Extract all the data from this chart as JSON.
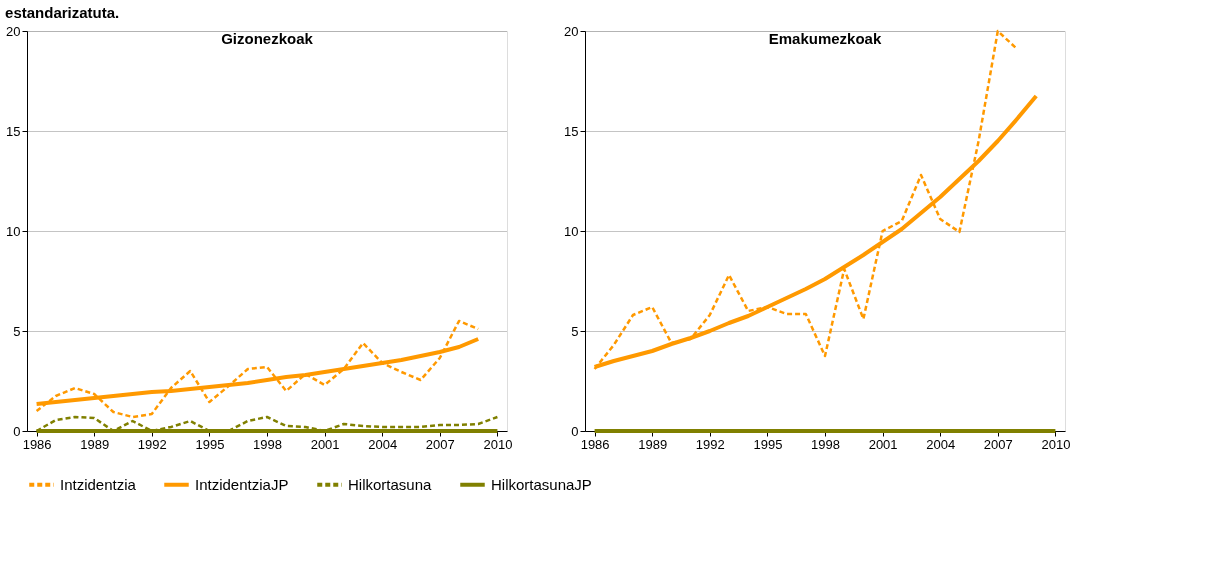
{
  "chart_data": [
    {
      "type": "line",
      "title": "Gizonezkoak",
      "annotations": [
        "estandarizatuta."
      ],
      "legend": "bottom",
      "grid": "y",
      "xlim": [
        1985.5,
        2010.5
      ],
      "xticks": [
        1986,
        1989,
        1992,
        1995,
        1998,
        2001,
        2004,
        2007,
        2010
      ],
      "ylim": [
        0,
        20
      ],
      "yticks": [
        0,
        5,
        10,
        15,
        20
      ],
      "series": [
        {
          "name": "Intzidentzia",
          "color": "#ff9900",
          "line_style": "dashed",
          "x": [
            1986,
            1987,
            1988,
            1989,
            1990,
            1991,
            1992,
            1993,
            1994,
            1995,
            1996,
            1997,
            1998,
            1999,
            2000,
            2001,
            2002,
            2003,
            2004,
            2005,
            2006,
            2007,
            2008,
            2009
          ],
          "values": [
            1.0,
            1.75,
            2.15,
            1.85,
            0.95,
            0.7,
            0.85,
            2.15,
            3.0,
            1.45,
            2.25,
            3.1,
            3.2,
            2.0,
            2.85,
            2.3,
            3.1,
            4.4,
            3.4,
            2.95,
            2.55,
            3.65,
            5.5,
            5.1
          ]
        },
        {
          "name": "IntzidentziaJP",
          "color": "#ff9900",
          "line_style": "solid",
          "x": [
            1986,
            1987,
            1988,
            1989,
            1990,
            1991,
            1992,
            1993,
            1994,
            1995,
            1996,
            1997,
            1998,
            1999,
            2000,
            2001,
            2002,
            2003,
            2004,
            2005,
            2006,
            2007,
            2008,
            2009
          ],
          "values": [
            1.35,
            1.45,
            1.55,
            1.65,
            1.75,
            1.85,
            1.95,
            2.0,
            2.1,
            2.2,
            2.3,
            2.4,
            2.55,
            2.7,
            2.8,
            2.95,
            3.1,
            3.25,
            3.4,
            3.55,
            3.75,
            3.95,
            4.2,
            4.6
          ]
        },
        {
          "name": "Hilkortasuna",
          "color": "#808000",
          "line_style": "dashed",
          "x": [
            1986,
            1987,
            1988,
            1989,
            1990,
            1991,
            1992,
            1993,
            1994,
            1995,
            1996,
            1997,
            1998,
            1999,
            2000,
            2001,
            2002,
            2003,
            2004,
            2005,
            2006,
            2007,
            2008,
            2009,
            2010
          ],
          "values": [
            0,
            0.55,
            0.7,
            0.65,
            0,
            0.5,
            0,
            0.2,
            0.5,
            0,
            0,
            0.5,
            0.7,
            0.25,
            0.2,
            0,
            0.35,
            0.25,
            0.2,
            0.2,
            0.2,
            0.3,
            0.3,
            0.35,
            0.7
          ]
        },
        {
          "name": "HilkortasunaJP",
          "color": "#808000",
          "line_style": "solid",
          "x": [
            1986,
            1987,
            1988,
            1989,
            1990,
            1991,
            1992,
            1993,
            1994,
            1995,
            1996,
            1997,
            1998,
            1999,
            2000,
            2001,
            2002,
            2003,
            2004,
            2005,
            2006,
            2007,
            2008,
            2009,
            2010
          ],
          "values": [
            0,
            0,
            0,
            0,
            0,
            0,
            0,
            0,
            0,
            0,
            0,
            0,
            0,
            0,
            0,
            0,
            0,
            0,
            0,
            0,
            0,
            0,
            0,
            0,
            0
          ]
        }
      ]
    },
    {
      "type": "line",
      "title": "Emakumezkoak",
      "legend": "bottom",
      "grid": "y",
      "xlim": [
        1985.5,
        2010.5
      ],
      "xticks": [
        1986,
        1989,
        1992,
        1995,
        1998,
        2001,
        2004,
        2007,
        2010
      ],
      "ylim": [
        0,
        20
      ],
      "yticks": [
        0,
        5,
        10,
        15,
        20
      ],
      "series": [
        {
          "name": "Intzidentzia",
          "color": "#ff9900",
          "line_style": "dashed",
          "x": [
            1986,
            1987,
            1988,
            1989,
            1990,
            1991,
            1992,
            1993,
            1994,
            1995,
            1996,
            1997,
            1998,
            1999,
            2000,
            2001,
            2002,
            2003,
            2004,
            2005,
            2006,
            2007,
            2008
          ],
          "values": [
            3.1,
            4.3,
            5.8,
            6.2,
            4.4,
            4.6,
            5.8,
            7.8,
            6.0,
            6.2,
            5.85,
            5.85,
            3.75,
            8.1,
            5.6,
            10.0,
            10.5,
            12.8,
            10.6,
            9.95,
            14.5,
            20.0,
            19.1
          ]
        },
        {
          "name": "IntzidentziaJP",
          "color": "#ff9900",
          "line_style": "solid",
          "x": [
            1986,
            1987,
            1988,
            1989,
            1990,
            1991,
            1992,
            1993,
            1994,
            1995,
            1996,
            1997,
            1998,
            1999,
            2000,
            2001,
            2002,
            2003,
            2004,
            2005,
            2006,
            2007,
            2008,
            2009
          ],
          "values": [
            3.2,
            3.5,
            3.75,
            4.0,
            4.35,
            4.65,
            5.0,
            5.4,
            5.75,
            6.2,
            6.65,
            7.1,
            7.6,
            8.2,
            8.8,
            9.45,
            10.1,
            10.9,
            11.7,
            12.6,
            13.5,
            14.5,
            15.6,
            16.75
          ]
        },
        {
          "name": "Hilkortasuna",
          "color": "#808000",
          "line_style": "dashed"
        },
        {
          "name": "HilkortasunaJP",
          "color": "#808000",
          "line_style": "solid",
          "x": [
            1986,
            1987,
            1988,
            1989,
            1990,
            1991,
            1992,
            1993,
            1994,
            1995,
            1996,
            1997,
            1998,
            1999,
            2000,
            2001,
            2002,
            2003,
            2004,
            2005,
            2006,
            2007,
            2008,
            2009,
            2010
          ],
          "values": [
            0,
            0,
            0,
            0,
            0,
            0,
            0,
            0,
            0,
            0,
            0,
            0,
            0,
            0,
            0,
            0,
            0,
            0,
            0,
            0,
            0,
            0,
            0,
            0,
            0
          ]
        }
      ]
    }
  ]
}
